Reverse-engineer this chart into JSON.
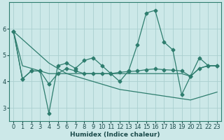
{
  "xlabel": "Humidex (Indice chaleur)",
  "background_color": "#cce8e8",
  "grid_color": "#aacfcf",
  "line_color": "#2e7d6e",
  "xlim": [
    -0.5,
    23.5
  ],
  "ylim": [
    2.5,
    7.0
  ],
  "yticks": [
    3,
    4,
    5,
    6
  ],
  "xtick_labels": [
    "0",
    "1",
    "2",
    "3",
    "4",
    "5",
    "6",
    "7",
    "8",
    "9",
    "10",
    "11",
    "12",
    "13",
    "14",
    "15",
    "16",
    "17",
    "18",
    "19",
    "20",
    "21",
    "22",
    "23"
  ],
  "series": [
    [
      5.9,
      4.1,
      4.4,
      4.4,
      2.8,
      4.6,
      4.7,
      4.5,
      4.8,
      4.9,
      4.6,
      4.3,
      4.0,
      4.4,
      5.4,
      6.6,
      6.7,
      5.5,
      5.2,
      3.5,
      4.2,
      4.9,
      4.6,
      4.6
    ],
    [
      5.9,
      4.1,
      4.4,
      4.4,
      3.9,
      4.3,
      4.5,
      4.4,
      4.3,
      4.3,
      4.3,
      4.3,
      4.35,
      4.38,
      4.4,
      4.45,
      4.48,
      4.45,
      4.43,
      4.4,
      4.2,
      4.5,
      4.6,
      4.6
    ],
    [
      5.9,
      4.6,
      4.5,
      4.4,
      4.3,
      4.3,
      4.3,
      4.3,
      4.3,
      4.3,
      4.3,
      4.3,
      4.3,
      4.3,
      4.3,
      4.3,
      4.3,
      4.3,
      4.3,
      4.3,
      4.2,
      4.5,
      4.6,
      4.6
    ],
    [
      5.9,
      5.6,
      5.3,
      5.0,
      4.7,
      4.5,
      4.3,
      4.2,
      4.1,
      4.0,
      3.9,
      3.8,
      3.7,
      3.65,
      3.6,
      3.55,
      3.5,
      3.45,
      3.4,
      3.35,
      3.3,
      3.4,
      3.5,
      3.6
    ]
  ],
  "has_markers": [
    true,
    true,
    false,
    false
  ],
  "marker_style": "D",
  "marker_size": 2.5,
  "linewidth": 0.9
}
